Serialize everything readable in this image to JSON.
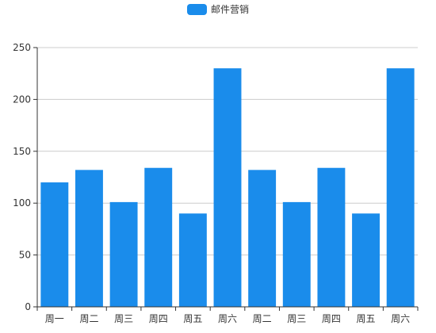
{
  "chart_data": {
    "type": "bar",
    "title": "",
    "xlabel": "",
    "ylabel": "",
    "categories": [
      "周一",
      "周二",
      "周三",
      "周四",
      "周五",
      "周六",
      "周二",
      "周三",
      "周四",
      "周五",
      "周六"
    ],
    "series": [
      {
        "name": "邮件营销",
        "values": [
          120,
          132,
          101,
          134,
          90,
          230,
          132,
          101,
          134,
          90,
          230
        ],
        "color": "#1a8ceb"
      }
    ],
    "ylim": [
      0,
      250
    ],
    "yticks": [
      0,
      50,
      100,
      150,
      200,
      250
    ],
    "grid": true,
    "legend_position": "top-center"
  }
}
